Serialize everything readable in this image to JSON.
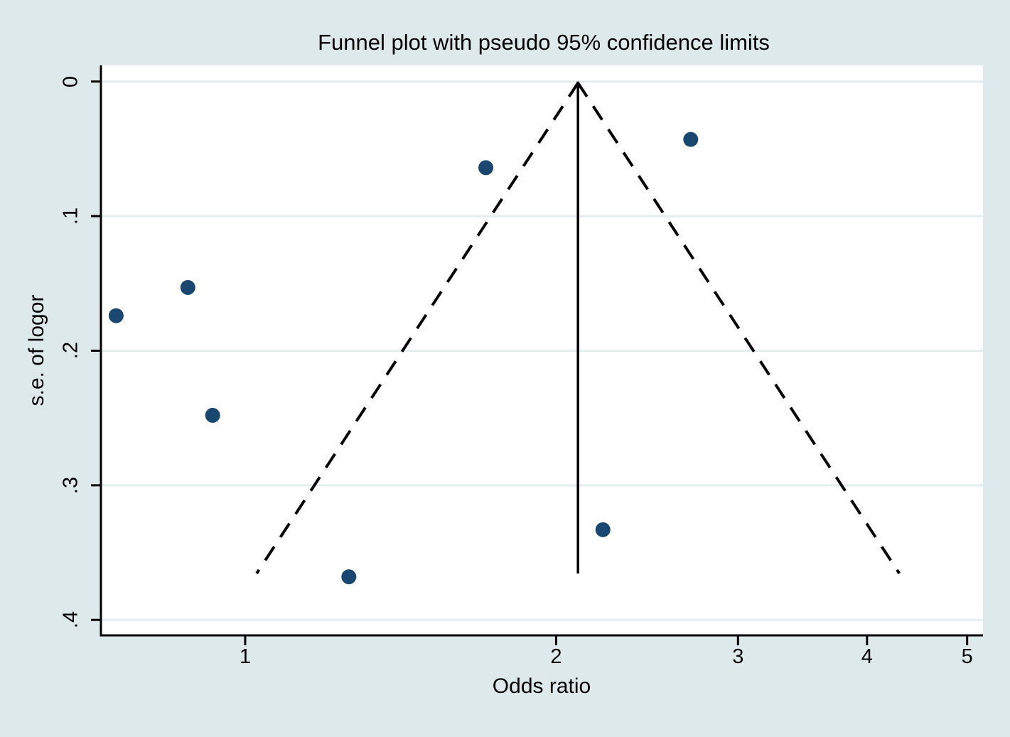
{
  "chart_data": {
    "type": "scatter",
    "variant": "funnel-plot",
    "title": "Funnel plot with pseudo 95% confidence limits",
    "xlabel": "Odds ratio",
    "ylabel": "s.e. of logor",
    "x_scale": "log",
    "y_inverted": true,
    "grid": "horizontal",
    "xlim": [
      0.725,
      5.18
    ],
    "ylim": [
      -0.012,
      0.4115
    ],
    "x_ticks": [
      {
        "v": 1,
        "label": "1"
      },
      {
        "v": 2,
        "label": "2"
      },
      {
        "v": 3,
        "label": "3"
      },
      {
        "v": 4,
        "label": "4"
      },
      {
        "v": 5,
        "label": "5"
      }
    ],
    "y_ticks": [
      {
        "v": 0,
        "label": "0"
      },
      {
        "v": 0.1,
        "label": ".1"
      },
      {
        "v": 0.2,
        "label": ".2"
      },
      {
        "v": 0.3,
        "label": ".3"
      },
      {
        "v": 0.4,
        "label": ".4"
      }
    ],
    "points": [
      {
        "or": 0.75,
        "se": 0.174
      },
      {
        "or": 0.88,
        "se": 0.153
      },
      {
        "or": 0.93,
        "se": 0.248
      },
      {
        "or": 1.26,
        "se": 0.368
      },
      {
        "or": 1.71,
        "se": 0.064
      },
      {
        "or": 2.22,
        "se": 0.333
      },
      {
        "or": 2.7,
        "se": 0.043
      }
    ],
    "funnel": {
      "center_or": 2.1,
      "z": 1.96,
      "se_max": 0.3655
    },
    "colors": {
      "marker": "#1a476f",
      "background": "#dee9eb",
      "plot_background": "#ffffff",
      "gridline": "#e4edef",
      "line": "#000000"
    }
  }
}
